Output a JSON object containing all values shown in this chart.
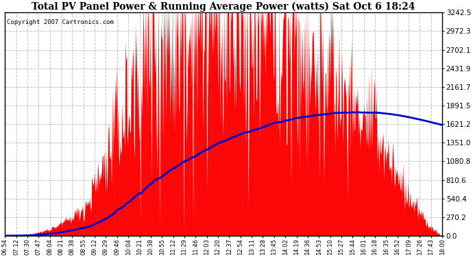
{
  "title": "Total PV Panel Power & Running Average Power (watts) Sat Oct 6 18:24",
  "copyright": "Copyright 2007 Cartronics.com",
  "background_color": "#ffffff",
  "plot_bg_color": "#ffffff",
  "grid_color": "#bbbbbb",
  "bar_color": "#ff0000",
  "line_color": "#0000cc",
  "yticks": [
    0.0,
    270.2,
    540.4,
    810.6,
    1080.8,
    1351.0,
    1621.2,
    1891.5,
    2161.7,
    2431.9,
    2702.1,
    2972.3,
    3242.5
  ],
  "ymax": 3242.5,
  "total_minutes": 666,
  "xtick_labels": [
    "06:54",
    "07:12",
    "07:30",
    "07:47",
    "08:04",
    "08:21",
    "08:38",
    "08:55",
    "09:12",
    "09:29",
    "09:46",
    "10:04",
    "10:21",
    "10:38",
    "10:55",
    "11:12",
    "11:29",
    "11:46",
    "12:03",
    "12:20",
    "12:37",
    "12:54",
    "13:11",
    "13:28",
    "13:45",
    "14:02",
    "14:19",
    "14:36",
    "14:53",
    "15:10",
    "15:27",
    "15:44",
    "16:01",
    "16:18",
    "16:35",
    "16:52",
    "17:09",
    "17:26",
    "17:43",
    "18:00"
  ]
}
